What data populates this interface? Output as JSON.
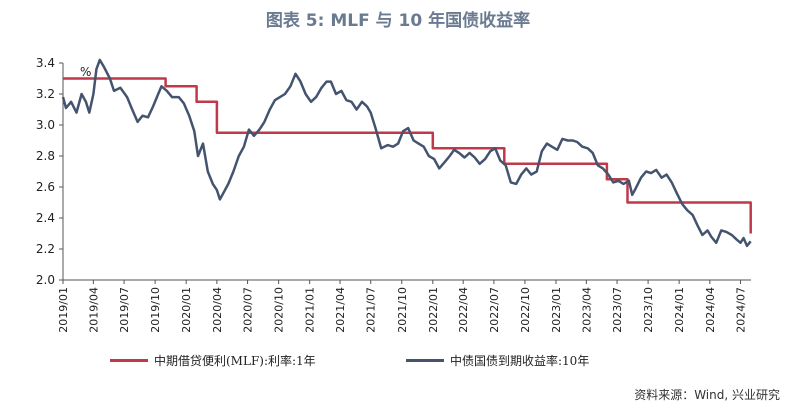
{
  "figure": {
    "title": "图表 5:  MLF 与 10 年国债收益率",
    "source": "资料来源：Wind, 兴业研究"
  },
  "chart_data": {
    "type": "line",
    "title": "图表 5:  MLF 与 10 年国债收益率",
    "ylabel": "%",
    "xlabel": "",
    "ylim": [
      2.0,
      3.4
    ],
    "xlim": [
      "2019-01",
      "2024-08"
    ],
    "y_ticks": [
      "2.0",
      "2.2",
      "2.4",
      "2.6",
      "2.8",
      "3.0",
      "3.2",
      "3.4"
    ],
    "x_ticks": [
      "2019/01",
      "2019/04",
      "2019/07",
      "2019/10",
      "2020/01",
      "2020/04",
      "2020/07",
      "2020/10",
      "2021/01",
      "2021/04",
      "2021/07",
      "2021/10",
      "2022/01",
      "2022/04",
      "2022/07",
      "2022/10",
      "2023/01",
      "2023/04",
      "2023/07",
      "2023/10",
      "2024/01",
      "2024/04",
      "2024/07"
    ],
    "grid": false,
    "legend": "bottom",
    "series": [
      {
        "name": "中期借贷便利(MLF):利率:1年",
        "color": "#c0394b",
        "step": true,
        "points": [
          [
            "2019-01",
            3.3
          ],
          [
            "2019-11",
            3.25
          ],
          [
            "2020-02",
            3.15
          ],
          [
            "2020-04",
            2.95
          ],
          [
            "2022-01",
            2.85
          ],
          [
            "2022-08",
            2.75
          ],
          [
            "2023-06",
            2.65
          ],
          [
            "2023-08",
            2.5
          ],
          [
            "2024-07-25",
            2.5
          ],
          [
            "2024-07-31",
            2.3
          ]
        ]
      },
      {
        "name": "中债国债到期收益率:10年",
        "color": "#44546f",
        "step": false,
        "points": [
          [
            "2019-01-01",
            3.18
          ],
          [
            "2019-01-10",
            3.11
          ],
          [
            "2019-01-25",
            3.15
          ],
          [
            "2019-02-10",
            3.08
          ],
          [
            "2019-02-25",
            3.2
          ],
          [
            "2019-03-10",
            3.15
          ],
          [
            "2019-03-20",
            3.08
          ],
          [
            "2019-04-01",
            3.2
          ],
          [
            "2019-04-10",
            3.36
          ],
          [
            "2019-04-20",
            3.42
          ],
          [
            "2019-05-01",
            3.38
          ],
          [
            "2019-05-20",
            3.3
          ],
          [
            "2019-06-01",
            3.22
          ],
          [
            "2019-06-20",
            3.24
          ],
          [
            "2019-07-10",
            3.18
          ],
          [
            "2019-07-25",
            3.1
          ],
          [
            "2019-08-10",
            3.02
          ],
          [
            "2019-08-25",
            3.06
          ],
          [
            "2019-09-10",
            3.05
          ],
          [
            "2019-09-25",
            3.12
          ],
          [
            "2019-10-10",
            3.2
          ],
          [
            "2019-10-20",
            3.25
          ],
          [
            "2019-11-05",
            3.22
          ],
          [
            "2019-11-20",
            3.18
          ],
          [
            "2019-12-10",
            3.18
          ],
          [
            "2019-12-25",
            3.14
          ],
          [
            "2020-01-10",
            3.06
          ],
          [
            "2020-01-25",
            2.96
          ],
          [
            "2020-02-05",
            2.8
          ],
          [
            "2020-02-20",
            2.88
          ],
          [
            "2020-03-05",
            2.7
          ],
          [
            "2020-03-20",
            2.62
          ],
          [
            "2020-04-01",
            2.58
          ],
          [
            "2020-04-10",
            2.52
          ],
          [
            "2020-04-20",
            2.56
          ],
          [
            "2020-05-05",
            2.62
          ],
          [
            "2020-05-20",
            2.7
          ],
          [
            "2020-06-05",
            2.8
          ],
          [
            "2020-06-20",
            2.86
          ],
          [
            "2020-07-05",
            2.97
          ],
          [
            "2020-07-20",
            2.93
          ],
          [
            "2020-08-05",
            2.97
          ],
          [
            "2020-08-20",
            3.02
          ],
          [
            "2020-09-05",
            3.1
          ],
          [
            "2020-09-20",
            3.16
          ],
          [
            "2020-10-05",
            3.18
          ],
          [
            "2020-10-20",
            3.2
          ],
          [
            "2020-11-05",
            3.25
          ],
          [
            "2020-11-20",
            3.33
          ],
          [
            "2020-12-05",
            3.28
          ],
          [
            "2020-12-20",
            3.2
          ],
          [
            "2021-01-05",
            3.15
          ],
          [
            "2021-01-20",
            3.18
          ],
          [
            "2021-02-05",
            3.24
          ],
          [
            "2021-02-20",
            3.28
          ],
          [
            "2021-03-05",
            3.28
          ],
          [
            "2021-03-20",
            3.2
          ],
          [
            "2021-04-05",
            3.22
          ],
          [
            "2021-04-20",
            3.16
          ],
          [
            "2021-05-05",
            3.15
          ],
          [
            "2021-05-20",
            3.1
          ],
          [
            "2021-06-05",
            3.15
          ],
          [
            "2021-06-20",
            3.12
          ],
          [
            "2021-07-01",
            3.08
          ],
          [
            "2021-07-15",
            2.98
          ],
          [
            "2021-08-01",
            2.85
          ],
          [
            "2021-08-20",
            2.87
          ],
          [
            "2021-09-05",
            2.86
          ],
          [
            "2021-09-20",
            2.88
          ],
          [
            "2021-10-05",
            2.96
          ],
          [
            "2021-10-20",
            2.98
          ],
          [
            "2021-11-05",
            2.9
          ],
          [
            "2021-11-20",
            2.88
          ],
          [
            "2021-12-05",
            2.86
          ],
          [
            "2021-12-20",
            2.8
          ],
          [
            "2022-01-05",
            2.78
          ],
          [
            "2022-01-20",
            2.72
          ],
          [
            "2022-02-05",
            2.76
          ],
          [
            "2022-02-20",
            2.8
          ],
          [
            "2022-03-05",
            2.84
          ],
          [
            "2022-03-20",
            2.82
          ],
          [
            "2022-04-05",
            2.79
          ],
          [
            "2022-04-20",
            2.82
          ],
          [
            "2022-05-05",
            2.79
          ],
          [
            "2022-05-20",
            2.75
          ],
          [
            "2022-06-05",
            2.78
          ],
          [
            "2022-06-20",
            2.83
          ],
          [
            "2022-07-05",
            2.85
          ],
          [
            "2022-07-20",
            2.77
          ],
          [
            "2022-08-05",
            2.74
          ],
          [
            "2022-08-20",
            2.63
          ],
          [
            "2022-09-05",
            2.62
          ],
          [
            "2022-09-20",
            2.68
          ],
          [
            "2022-10-05",
            2.72
          ],
          [
            "2022-10-20",
            2.68
          ],
          [
            "2022-11-05",
            2.7
          ],
          [
            "2022-11-20",
            2.83
          ],
          [
            "2022-12-05",
            2.88
          ],
          [
            "2022-12-20",
            2.86
          ],
          [
            "2023-01-05",
            2.84
          ],
          [
            "2023-01-20",
            2.91
          ],
          [
            "2023-02-05",
            2.9
          ],
          [
            "2023-02-20",
            2.9
          ],
          [
            "2023-03-05",
            2.89
          ],
          [
            "2023-03-20",
            2.86
          ],
          [
            "2023-04-05",
            2.85
          ],
          [
            "2023-04-20",
            2.82
          ],
          [
            "2023-05-05",
            2.74
          ],
          [
            "2023-05-20",
            2.72
          ],
          [
            "2023-06-05",
            2.68
          ],
          [
            "2023-06-20",
            2.63
          ],
          [
            "2023-07-05",
            2.64
          ],
          [
            "2023-07-20",
            2.62
          ],
          [
            "2023-08-05",
            2.64
          ],
          [
            "2023-08-15",
            2.55
          ],
          [
            "2023-08-25",
            2.59
          ],
          [
            "2023-09-10",
            2.66
          ],
          [
            "2023-09-25",
            2.7
          ],
          [
            "2023-10-10",
            2.69
          ],
          [
            "2023-10-25",
            2.71
          ],
          [
            "2023-11-10",
            2.66
          ],
          [
            "2023-11-25",
            2.68
          ],
          [
            "2023-12-10",
            2.63
          ],
          [
            "2023-12-25",
            2.56
          ],
          [
            "2024-01-10",
            2.49
          ],
          [
            "2024-01-25",
            2.45
          ],
          [
            "2024-02-10",
            2.42
          ],
          [
            "2024-02-25",
            2.35
          ],
          [
            "2024-03-10",
            2.29
          ],
          [
            "2024-03-25",
            2.32
          ],
          [
            "2024-04-05",
            2.28
          ],
          [
            "2024-04-20",
            2.24
          ],
          [
            "2024-05-05",
            2.32
          ],
          [
            "2024-05-20",
            2.31
          ],
          [
            "2024-06-05",
            2.29
          ],
          [
            "2024-06-20",
            2.26
          ],
          [
            "2024-07-01",
            2.24
          ],
          [
            "2024-07-10",
            2.27
          ],
          [
            "2024-07-20",
            2.22
          ],
          [
            "2024-07-31",
            2.25
          ]
        ]
      }
    ]
  }
}
